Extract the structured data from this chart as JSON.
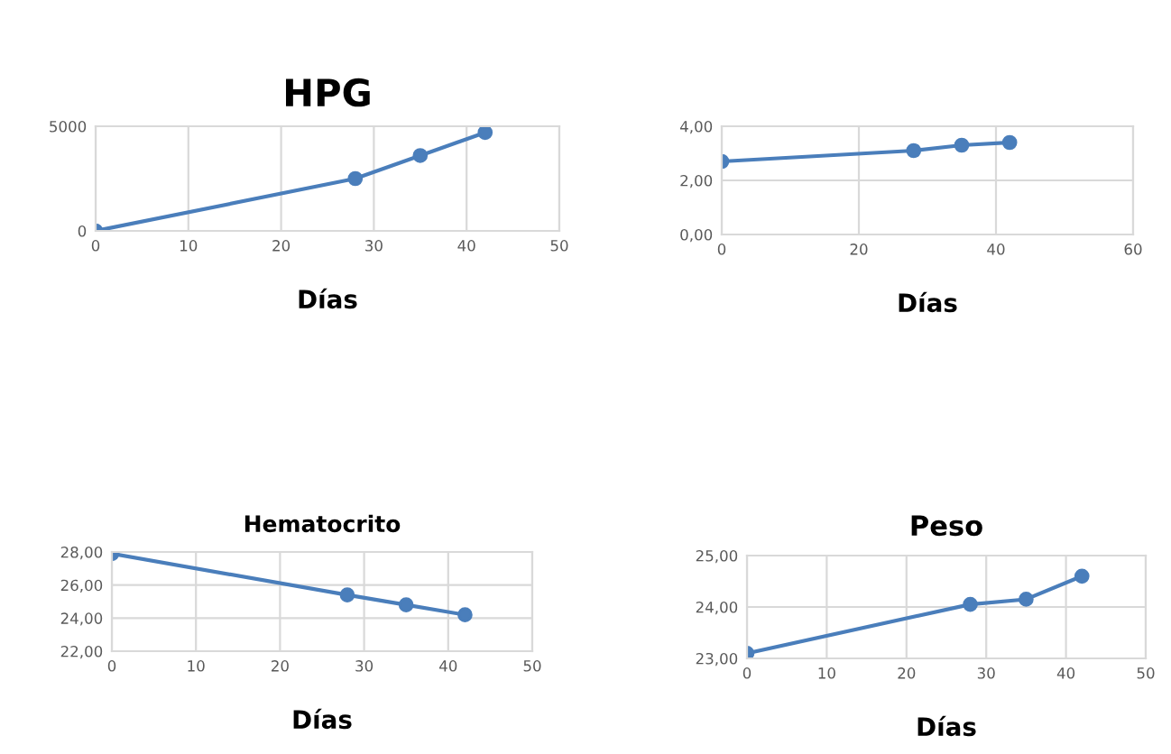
{
  "chart_data": [
    {
      "type": "line",
      "title": "HPG",
      "xlabel": "Días",
      "x": [
        0,
        28,
        35,
        42
      ],
      "series": [
        {
          "color": "#4a7ebb",
          "values": [
            0,
            2500,
            3600,
            4700
          ]
        }
      ],
      "xlim": [
        0,
        50
      ],
      "xticks": [
        0,
        10,
        20,
        30,
        40,
        50
      ],
      "ylim": [
        0,
        5000
      ],
      "yticks": [
        0,
        5000
      ],
      "grid": true,
      "marker": "circle",
      "line_style": "solid"
    },
    {
      "type": "line",
      "xlabel": "Días",
      "x": [
        0,
        28,
        35,
        42
      ],
      "series": [
        {
          "color": "#4a7ebb",
          "values": [
            2.7,
            3.1,
            3.3,
            3.4
          ]
        }
      ],
      "xlim": [
        0,
        60
      ],
      "xticks": [
        0,
        20,
        40,
        60
      ],
      "ylim": [
        0,
        4
      ],
      "yticks": [
        {
          "value": 0,
          "label": "0,00"
        },
        {
          "value": 2,
          "label": "2,00"
        },
        {
          "value": 4,
          "label": "4,00"
        }
      ],
      "grid": true,
      "marker": "circle",
      "line_style": "solid"
    },
    {
      "type": "line",
      "title": "Hematocrito",
      "xlabel": "Días",
      "x": [
        0,
        28,
        35,
        42
      ],
      "series": [
        {
          "color": "#4a7ebb",
          "values": [
            27.9,
            25.4,
            24.8,
            24.2
          ]
        }
      ],
      "xlim": [
        0,
        50
      ],
      "xticks": [
        0,
        10,
        20,
        30,
        40,
        50
      ],
      "ylim": [
        22,
        28
      ],
      "yticks": [
        {
          "value": 22,
          "label": "22,00"
        },
        {
          "value": 24,
          "label": "24,00"
        },
        {
          "value": 26,
          "label": "26,00"
        },
        {
          "value": 28,
          "label": "28,00"
        }
      ],
      "grid": true,
      "marker": "circle",
      "line_style": "solid"
    },
    {
      "type": "line",
      "title": "Peso",
      "xlabel": "Días",
      "x": [
        0,
        28,
        35,
        42
      ],
      "series": [
        {
          "color": "#4a7ebb",
          "values": [
            23.1,
            24.05,
            24.15,
            24.6
          ]
        }
      ],
      "xlim": [
        0,
        50
      ],
      "xticks": [
        0,
        10,
        20,
        30,
        40,
        50
      ],
      "ylim": [
        23,
        25
      ],
      "yticks": [
        {
          "value": 23,
          "label": "23,00"
        },
        {
          "value": 24,
          "label": "24,00"
        },
        {
          "value": 25,
          "label": "25,00"
        }
      ],
      "grid": true,
      "marker": "circle",
      "line_style": "solid"
    }
  ]
}
